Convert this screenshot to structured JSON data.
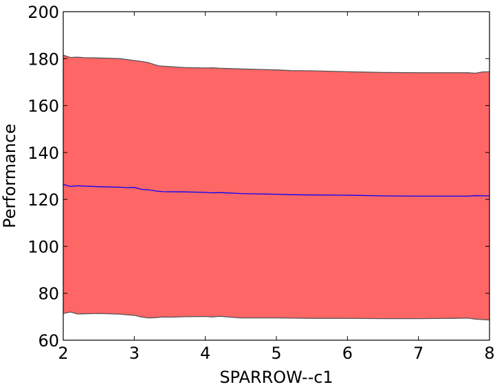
{
  "chart_data": {
    "type": "area",
    "title": "",
    "xlabel": "SPARROW--c1",
    "ylabel": "Performance",
    "xlim": [
      2,
      8
    ],
    "ylim": [
      60,
      200
    ],
    "xticks": [
      2,
      3,
      4,
      5,
      6,
      7,
      8
    ],
    "yticks": [
      60,
      80,
      100,
      120,
      140,
      160,
      180,
      200
    ],
    "grid": false,
    "colors": {
      "band": "#ff6666",
      "band_edge": "#555555",
      "mean_line": "#0000ff"
    },
    "series": [
      {
        "role": "upper",
        "x": [
          2.0,
          2.1,
          2.2,
          2.3,
          2.5,
          2.8,
          2.9,
          3.0,
          3.1,
          3.2,
          3.3,
          3.35,
          3.5,
          3.7,
          4.0,
          4.1,
          4.2,
          4.5,
          5.0,
          5.2,
          5.5,
          6.0,
          6.5,
          7.0,
          7.5,
          7.7,
          7.8,
          7.9,
          8.0
        ],
        "values": [
          181.5,
          180.5,
          180.6,
          180.4,
          180.3,
          180.0,
          179.6,
          179.2,
          178.8,
          178.3,
          177.3,
          176.9,
          176.6,
          176.2,
          176.0,
          176.1,
          175.9,
          175.6,
          175.2,
          174.9,
          174.8,
          174.4,
          174.1,
          174.0,
          174.0,
          174.0,
          173.8,
          174.3,
          174.4
        ]
      },
      {
        "role": "mean",
        "x": [
          2.0,
          2.1,
          2.2,
          2.5,
          2.8,
          2.9,
          3.0,
          3.1,
          3.2,
          3.3,
          3.4,
          3.7,
          4.0,
          4.1,
          4.2,
          4.5,
          5.0,
          5.2,
          5.5,
          6.0,
          6.5,
          7.0,
          7.5,
          7.7,
          7.8,
          8.0
        ],
        "values": [
          126.4,
          125.5,
          125.8,
          125.4,
          125.2,
          125.0,
          125.1,
          124.3,
          124.1,
          123.6,
          123.3,
          123.2,
          123.0,
          122.8,
          122.9,
          122.5,
          122.2,
          122.0,
          121.9,
          121.8,
          121.5,
          121.4,
          121.4,
          121.4,
          121.6,
          121.5
        ]
      },
      {
        "role": "lower",
        "x": [
          2.0,
          2.1,
          2.2,
          2.5,
          2.8,
          2.9,
          3.0,
          3.1,
          3.2,
          3.3,
          3.4,
          3.5,
          3.7,
          4.0,
          4.1,
          4.2,
          4.5,
          5.0,
          5.5,
          6.0,
          6.5,
          7.0,
          7.5,
          7.7,
          7.8,
          8.0
        ],
        "values": [
          71.4,
          72.0,
          71.2,
          71.4,
          71.1,
          70.8,
          70.6,
          69.9,
          69.5,
          69.6,
          69.9,
          69.8,
          70.0,
          70.1,
          69.9,
          70.2,
          69.5,
          69.5,
          69.3,
          69.3,
          69.2,
          69.2,
          69.3,
          69.4,
          69.0,
          68.6
        ]
      }
    ]
  }
}
